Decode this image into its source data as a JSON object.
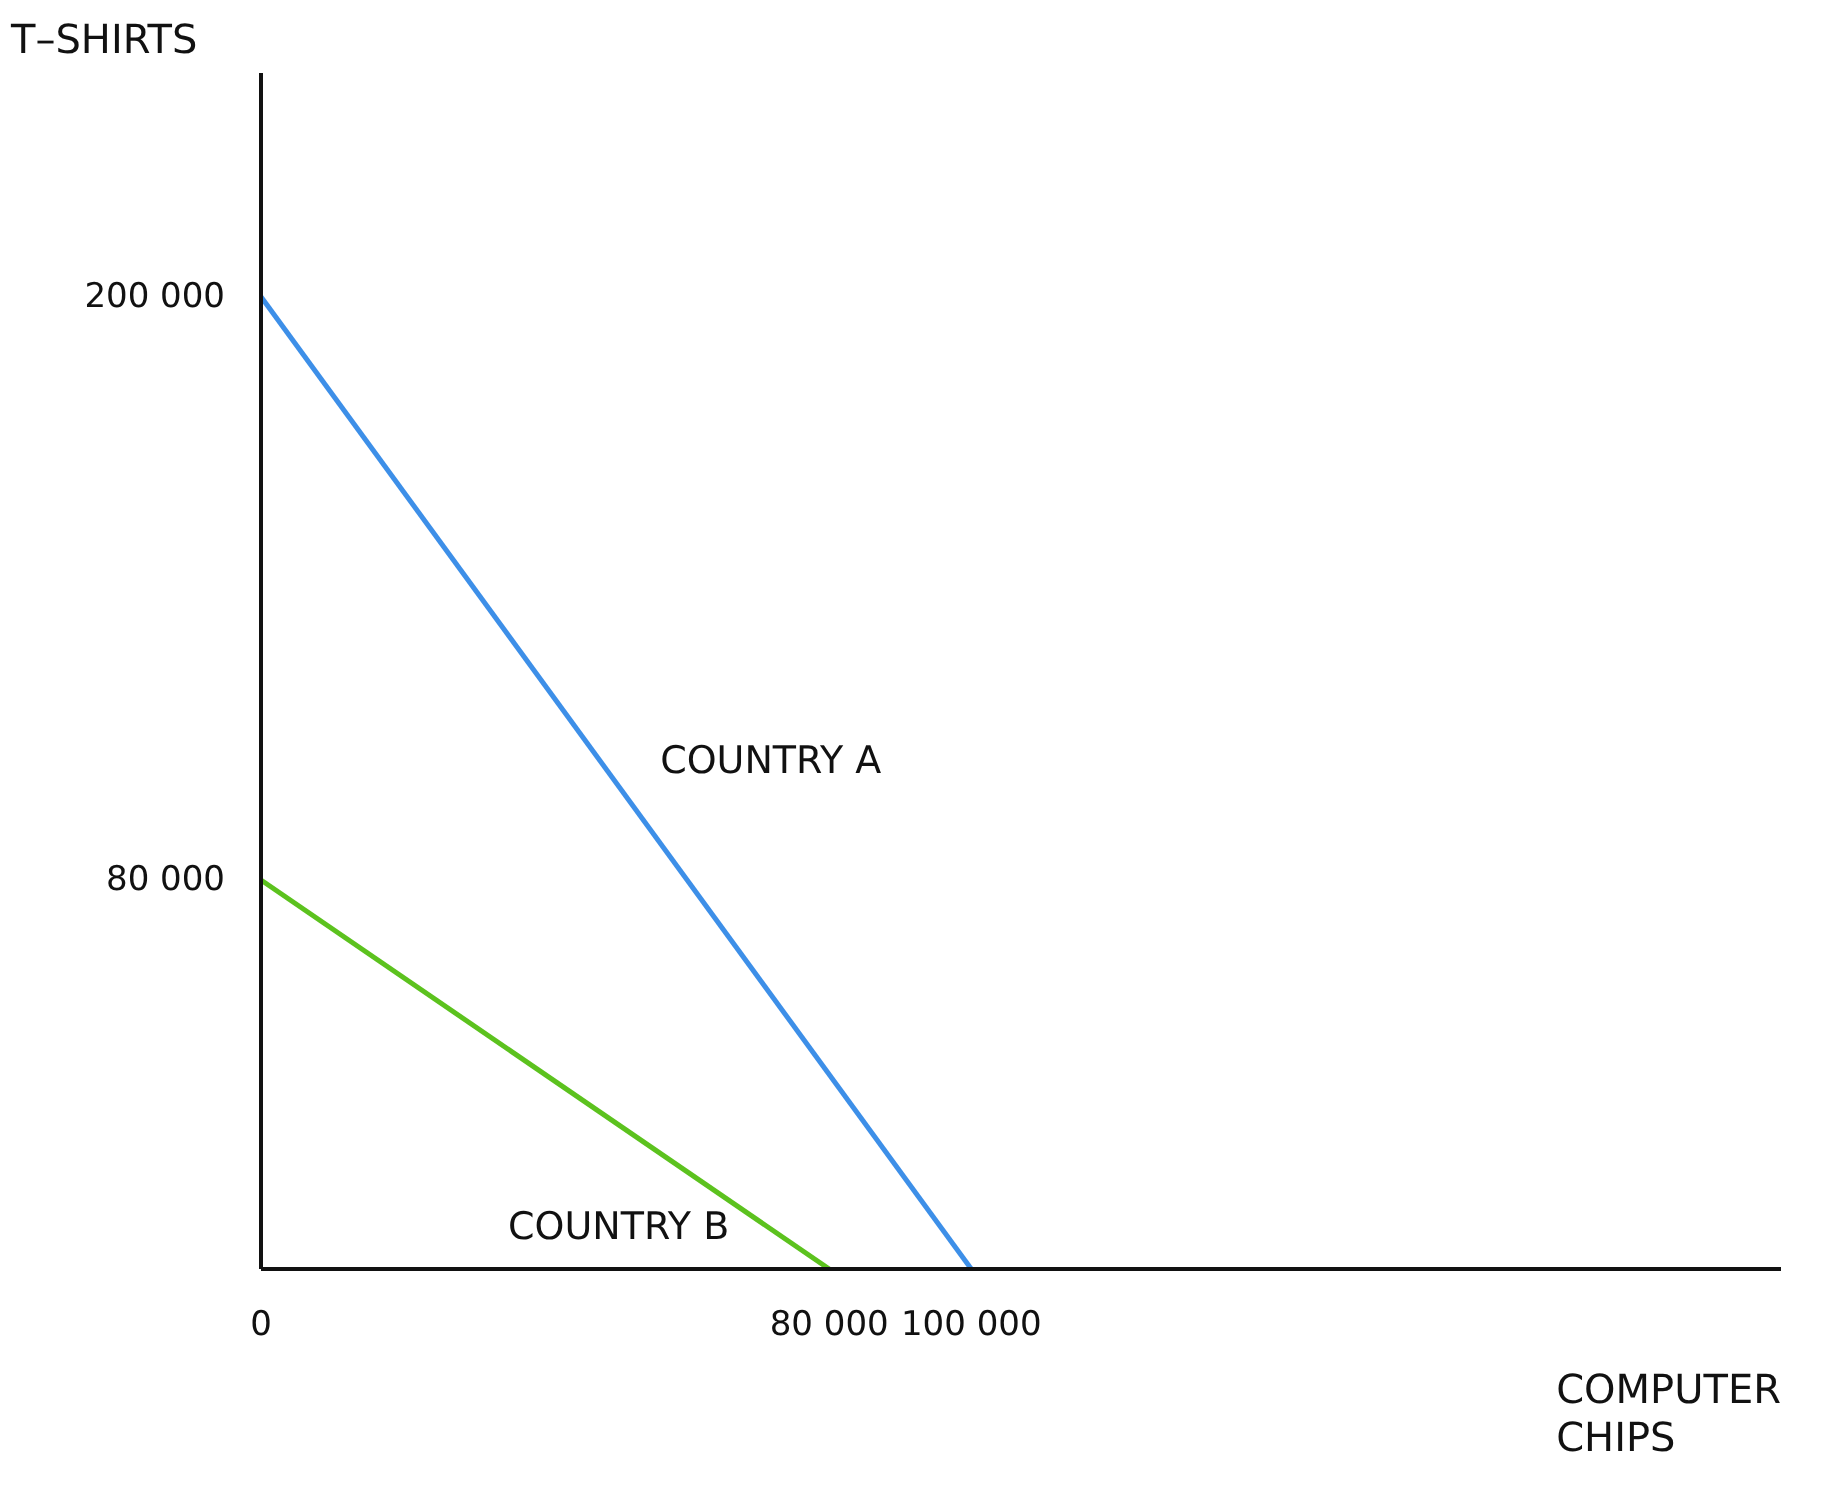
{
  "chart_data": {
    "type": "line",
    "xlabel": "COMPUTER CHIPS",
    "ylabel": "T–SHIRTS",
    "xlim": [
      0,
      214000
    ],
    "ylim": [
      0,
      246000
    ],
    "xticks": [
      {
        "value": 0,
        "label": "0"
      },
      {
        "value": 80000,
        "label": "80 000"
      },
      {
        "value": 100000,
        "label": "100 000"
      }
    ],
    "yticks": [
      {
        "value": 80000,
        "label": "80 000"
      },
      {
        "value": 200000,
        "label": "200 000"
      }
    ],
    "series": [
      {
        "name": "COUNTRY A",
        "color": "#3d8fe8",
        "x": [
          0,
          100000
        ],
        "values": [
          200000,
          0
        ]
      },
      {
        "name": "COUNTRY B",
        "color": "#5cc21e",
        "x": [
          0,
          80000
        ],
        "values": [
          80000,
          0
        ]
      }
    ],
    "grid": false,
    "marker": "none",
    "line_style": "solid"
  }
}
